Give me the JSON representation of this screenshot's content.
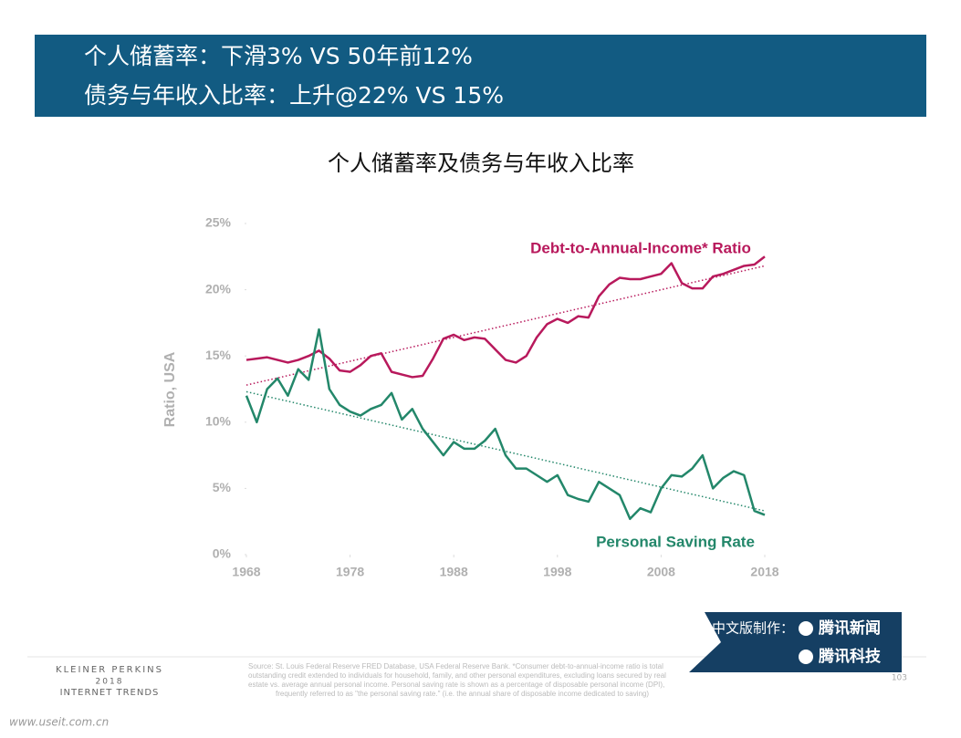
{
  "slide": {
    "heading": [
      "个人储蓄率：下滑3% VS 50年前12%",
      "债务与年收入比率：上升@22% VS 15%"
    ],
    "source": [
      "Source: St. Louis Federal Reserve FRED Database, USA Federal Reserve Bank. *Consumer debt-to-annual-income ratio is total",
      "outstanding credit extended to individuals for household, family, and other personal expenditures, excluding loans secured by real",
      "estate vs. average annual personal income. Personal saving rate is shown as a percentage of disposable personal income (DPI),",
      "frequently referred to as \"the personal saving rate.\" (i.e. the annual share of disposable income dedicated to saving)"
    ],
    "brand": [
      "KLEINER PERKINS",
      "2018",
      "INTERNET TRENDS"
    ],
    "page": "103",
    "badge": {
      "prefix": "中文版制作：",
      "names": [
        "腾讯新闻",
        "腾讯科技"
      ]
    },
    "watermark": "www.useit.com.cn"
  },
  "chart_data": {
    "type": "line",
    "title": "个人储蓄率及债务与年收入比率",
    "y_label": "Ratio, USA",
    "x": [
      1968,
      1969,
      1970,
      1971,
      1972,
      1973,
      1974,
      1975,
      1976,
      1977,
      1978,
      1979,
      1980,
      1981,
      1982,
      1983,
      1984,
      1985,
      1986,
      1987,
      1988,
      1989,
      1990,
      1991,
      1992,
      1993,
      1994,
      1995,
      1996,
      1997,
      1998,
      1999,
      2000,
      2001,
      2002,
      2003,
      2004,
      2005,
      2006,
      2007,
      2008,
      2009,
      2010,
      2011,
      2012,
      2013,
      2014,
      2015,
      2016,
      2017,
      2018
    ],
    "series": [
      {
        "name": "Debt-to-Annual-Income* Ratio",
        "color": "#b8195c",
        "values": [
          14.7,
          14.8,
          14.9,
          14.7,
          14.5,
          14.7,
          15.0,
          15.4,
          14.8,
          13.9,
          13.8,
          14.3,
          15.0,
          15.2,
          13.8,
          13.6,
          13.4,
          13.5,
          14.8,
          16.3,
          16.6,
          16.2,
          16.4,
          16.3,
          15.5,
          14.7,
          14.5,
          15.0,
          16.4,
          17.4,
          17.8,
          17.5,
          18.0,
          17.9,
          19.5,
          20.4,
          20.9,
          20.8,
          20.8,
          21.0,
          21.2,
          22.0,
          20.5,
          20.1,
          20.1,
          21.0,
          21.2,
          21.5,
          21.8,
          21.9,
          22.5
        ]
      },
      {
        "name": "Personal Saving Rate",
        "color": "#23876a",
        "values": [
          12.0,
          10.0,
          12.5,
          13.3,
          12.0,
          14.0,
          13.2,
          17.0,
          12.5,
          11.3,
          10.8,
          10.5,
          11.0,
          11.3,
          12.2,
          10.2,
          11.0,
          9.5,
          8.5,
          7.5,
          8.5,
          8.0,
          8.0,
          8.6,
          9.5,
          7.5,
          6.5,
          6.5,
          6.0,
          5.5,
          6.0,
          4.5,
          4.2,
          4.0,
          5.5,
          5.0,
          4.5,
          2.7,
          3.5,
          3.2,
          5.0,
          6.0,
          5.9,
          6.5,
          7.5,
          5.0,
          5.8,
          6.3,
          6.0,
          3.3,
          3.0
        ]
      }
    ],
    "trendlines": [
      {
        "color": "#b8195c",
        "x": [
          1968,
          2018
        ],
        "values": [
          12.8,
          21.8
        ]
      },
      {
        "color": "#23876a",
        "x": [
          1968,
          2018
        ],
        "values": [
          12.3,
          3.3
        ]
      }
    ],
    "xlim": [
      1968,
      2018
    ],
    "xticks": [
      1968,
      1978,
      1988,
      1998,
      2008,
      2018
    ],
    "ylim": [
      0,
      25
    ],
    "yticks": [
      {
        "value": 0,
        "label": "0%"
      },
      {
        "value": 5,
        "label": "5%"
      },
      {
        "value": 10,
        "label": "10%"
      },
      {
        "value": 15,
        "label": "15%"
      },
      {
        "value": 20,
        "label": "20%"
      },
      {
        "value": 25,
        "label": "25%"
      }
    ]
  }
}
